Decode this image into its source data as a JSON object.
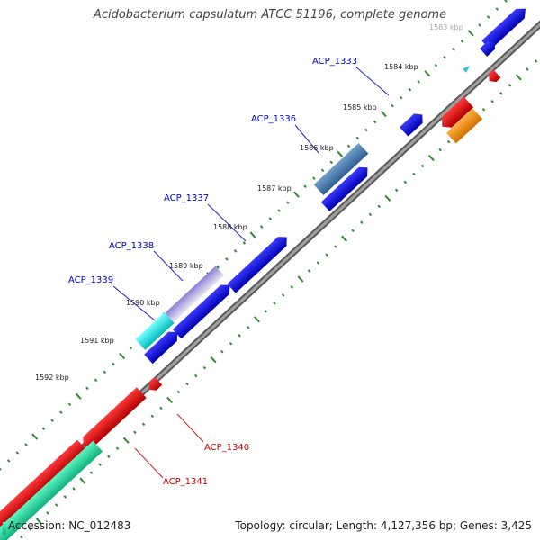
{
  "title": "Acidobacterium capsulatum ATCC 51196, complete genome",
  "footer": {
    "accession": "Accession: NC_012483",
    "summary": "Topology: circular; Length: 4,127,356 bp; Genes: 3,425"
  },
  "ticks": [
    {
      "label": "1583 kbp"
    },
    {
      "label": "1584 kbp"
    },
    {
      "label": "1585 kbp"
    },
    {
      "label": "1586 kbp"
    },
    {
      "label": "1587 kbp"
    },
    {
      "label": "1588 kbp"
    },
    {
      "label": "1589 kbp"
    },
    {
      "label": "1590 kbp"
    },
    {
      "label": "1591 kbp"
    },
    {
      "label": "1592 kbp"
    }
  ],
  "gene_labels": [
    {
      "label": "ACP_1333",
      "color": "#0000cc"
    },
    {
      "label": "ACP_1336",
      "color": "#0000cc"
    },
    {
      "label": "ACP_1337",
      "color": "#0000cc"
    },
    {
      "label": "ACP_1338",
      "color": "#0000cc"
    },
    {
      "label": "ACP_1339",
      "color": "#0000cc"
    },
    {
      "label": "ACP_1340",
      "color": "#cc0000"
    },
    {
      "label": "ACP_1341",
      "color": "#cc0000"
    }
  ],
  "colors": {
    "backbone": "#808080",
    "forward_cds": "#0000ee",
    "reverse_cds": "#ee0000",
    "tick_dots": "#2e8b2e",
    "cyan_cds": "#00e5e5",
    "steelblue_cds": "#4a7fb0",
    "lavender_cds": "#9a8fd0",
    "orange_cds": "#ff9900",
    "teal_cds": "#22d9a0"
  }
}
